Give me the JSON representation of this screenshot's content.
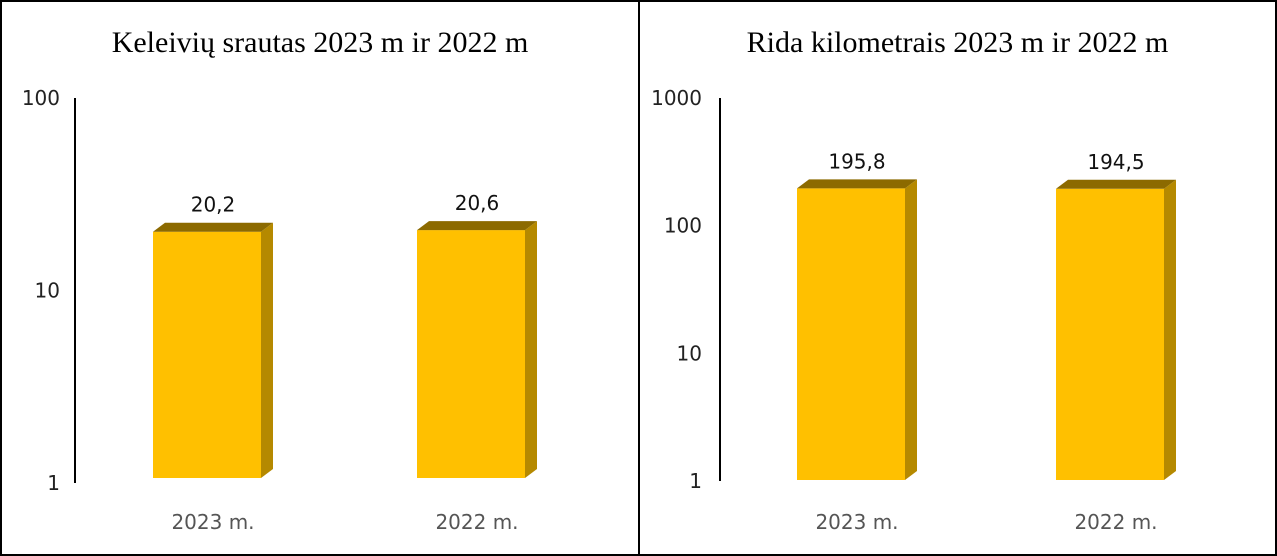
{
  "chart_data": [
    {
      "type": "bar",
      "title": "Keleivių srautas 2023 m ir 2022 m",
      "categories": [
        "2023 m.",
        "2022 m."
      ],
      "values": [
        20.2,
        20.6
      ],
      "data_labels": [
        "20,2",
        "20,6"
      ],
      "y_scale": "log",
      "ylim": [
        1,
        100
      ],
      "y_ticks": [
        "1",
        "10",
        "100"
      ],
      "grid": false,
      "legend": "none",
      "bar_color": "#FFC000",
      "bar_side_color": "#B58900",
      "bar_top_color": "#8C6A00"
    },
    {
      "type": "bar",
      "title": "Rida kilometrais 2023 m ir 2022 m",
      "categories": [
        "2023 m.",
        "2022 m."
      ],
      "values": [
        195.8,
        194.5
      ],
      "data_labels": [
        "195,8",
        "194,5"
      ],
      "y_scale": "log",
      "ylim": [
        1,
        1000
      ],
      "y_ticks": [
        "1",
        "10",
        "100",
        "1000"
      ],
      "grid": false,
      "legend": "none",
      "bar_color": "#FFC000",
      "bar_side_color": "#B58900",
      "bar_top_color": "#8C6A00"
    }
  ]
}
